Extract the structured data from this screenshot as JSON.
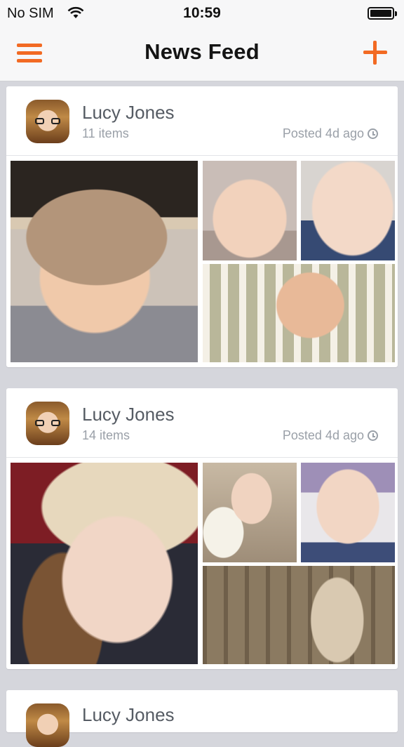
{
  "status_bar": {
    "carrier": "No SIM",
    "time": "10:59"
  },
  "nav": {
    "title": "News Feed",
    "menu_icon": "hamburger-menu-icon",
    "add_icon": "plus-icon",
    "accent_color": "#f26a23"
  },
  "feed": [
    {
      "name": "Lucy Jones",
      "items": "11 items",
      "posted": "Posted 4d ago"
    },
    {
      "name": "Lucy Jones",
      "items": "14 items",
      "posted": "Posted 4d ago"
    },
    {
      "name": "Lucy Jones"
    }
  ]
}
